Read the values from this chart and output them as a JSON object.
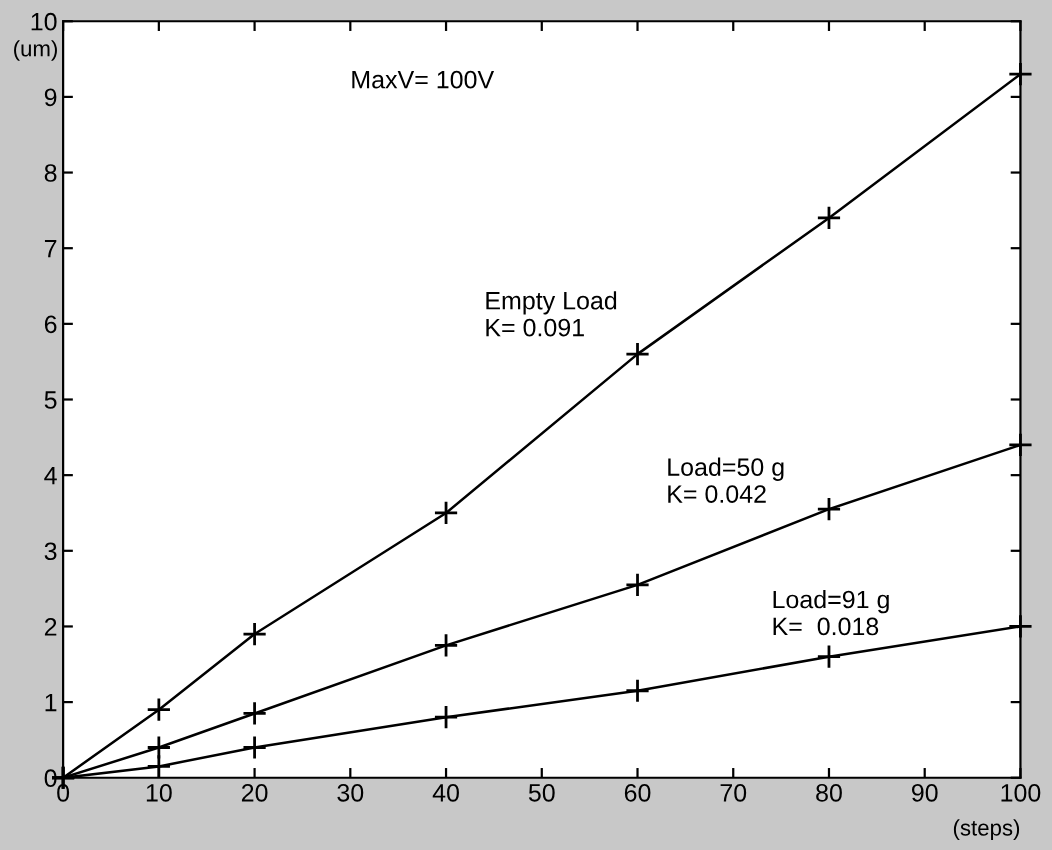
{
  "chart_data": {
    "type": "line",
    "xlabel": "(steps)",
    "ylabel": "(um)",
    "x": [
      0,
      10,
      20,
      40,
      60,
      80,
      100
    ],
    "series": [
      {
        "color": "#000000",
        "values": [
          0,
          0.9,
          1.9,
          3.5,
          5.6,
          7.4,
          9.3
        ]
      },
      {
        "color": "#000000",
        "values": [
          0,
          0.4,
          0.85,
          1.75,
          2.55,
          3.55,
          4.4
        ]
      },
      {
        "color": "#000000",
        "values": [
          0,
          0.15,
          0.4,
          0.8,
          1.15,
          1.6,
          2.0
        ]
      }
    ],
    "xlim": [
      0,
      100
    ],
    "ylim": [
      0,
      10
    ],
    "xticks": [
      0,
      10,
      20,
      30,
      40,
      50,
      60,
      70,
      80,
      90,
      100
    ],
    "yticks": [
      0,
      1,
      2,
      3,
      4,
      5,
      6,
      7,
      8,
      9,
      10
    ],
    "marker": "cross",
    "line_style": "solid",
    "grid": false,
    "legend": false,
    "annotations": [
      "MaxV= 100V",
      "Empty Load\nK= 0.091",
      "Load=50 g\nK= 0.042",
      "Load=91 g\nK=  0.018"
    ]
  }
}
